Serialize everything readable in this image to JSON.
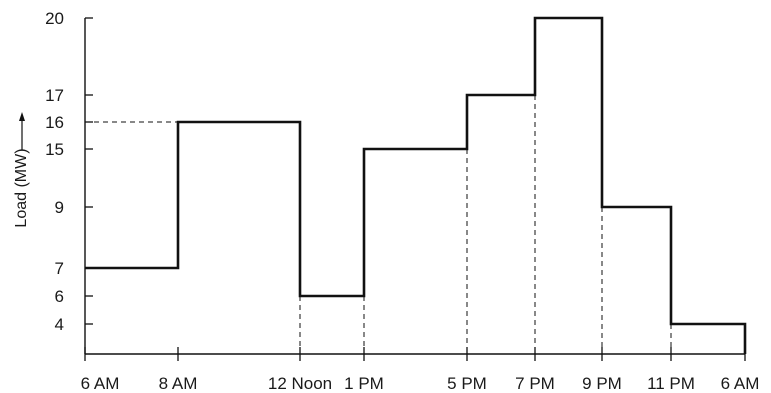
{
  "chart_data": {
    "type": "line",
    "title": "",
    "xlabel": "",
    "ylabel": "Load (MW)",
    "xlim": [
      6,
      30
    ],
    "ylim": [
      2.5,
      20
    ],
    "x_ticks": [
      {
        "hour": 6,
        "label": "6 AM"
      },
      {
        "hour": 8,
        "label": "8 AM"
      },
      {
        "hour": 12,
        "label": "12 Noon"
      },
      {
        "hour": 13,
        "label": "1 PM"
      },
      {
        "hour": 17,
        "label": "5 PM"
      },
      {
        "hour": 19,
        "label": "7 PM"
      },
      {
        "hour": 21,
        "label": "9 PM"
      },
      {
        "hour": 23,
        "label": "11 PM"
      },
      {
        "hour": 30,
        "label": "6 AM"
      }
    ],
    "y_ticks": [
      4,
      6,
      7,
      9,
      15,
      16,
      17,
      20
    ],
    "segments": [
      {
        "start": "6 AM",
        "end": "8 AM",
        "load": 7
      },
      {
        "start": "8 AM",
        "end": "12 Noon",
        "load": 16
      },
      {
        "start": "12 Noon",
        "end": "1 PM",
        "load": 6
      },
      {
        "start": "1 PM",
        "end": "5 PM",
        "load": 15
      },
      {
        "start": "5 PM",
        "end": "7 PM",
        "load": 17
      },
      {
        "start": "7 PM",
        "end": "9 PM",
        "load": 20
      },
      {
        "start": "9 PM",
        "end": "11 PM",
        "load": 9
      },
      {
        "start": "11 PM",
        "end": "6 AM",
        "load": 4
      }
    ],
    "grid": false,
    "line_color": "#111111"
  }
}
